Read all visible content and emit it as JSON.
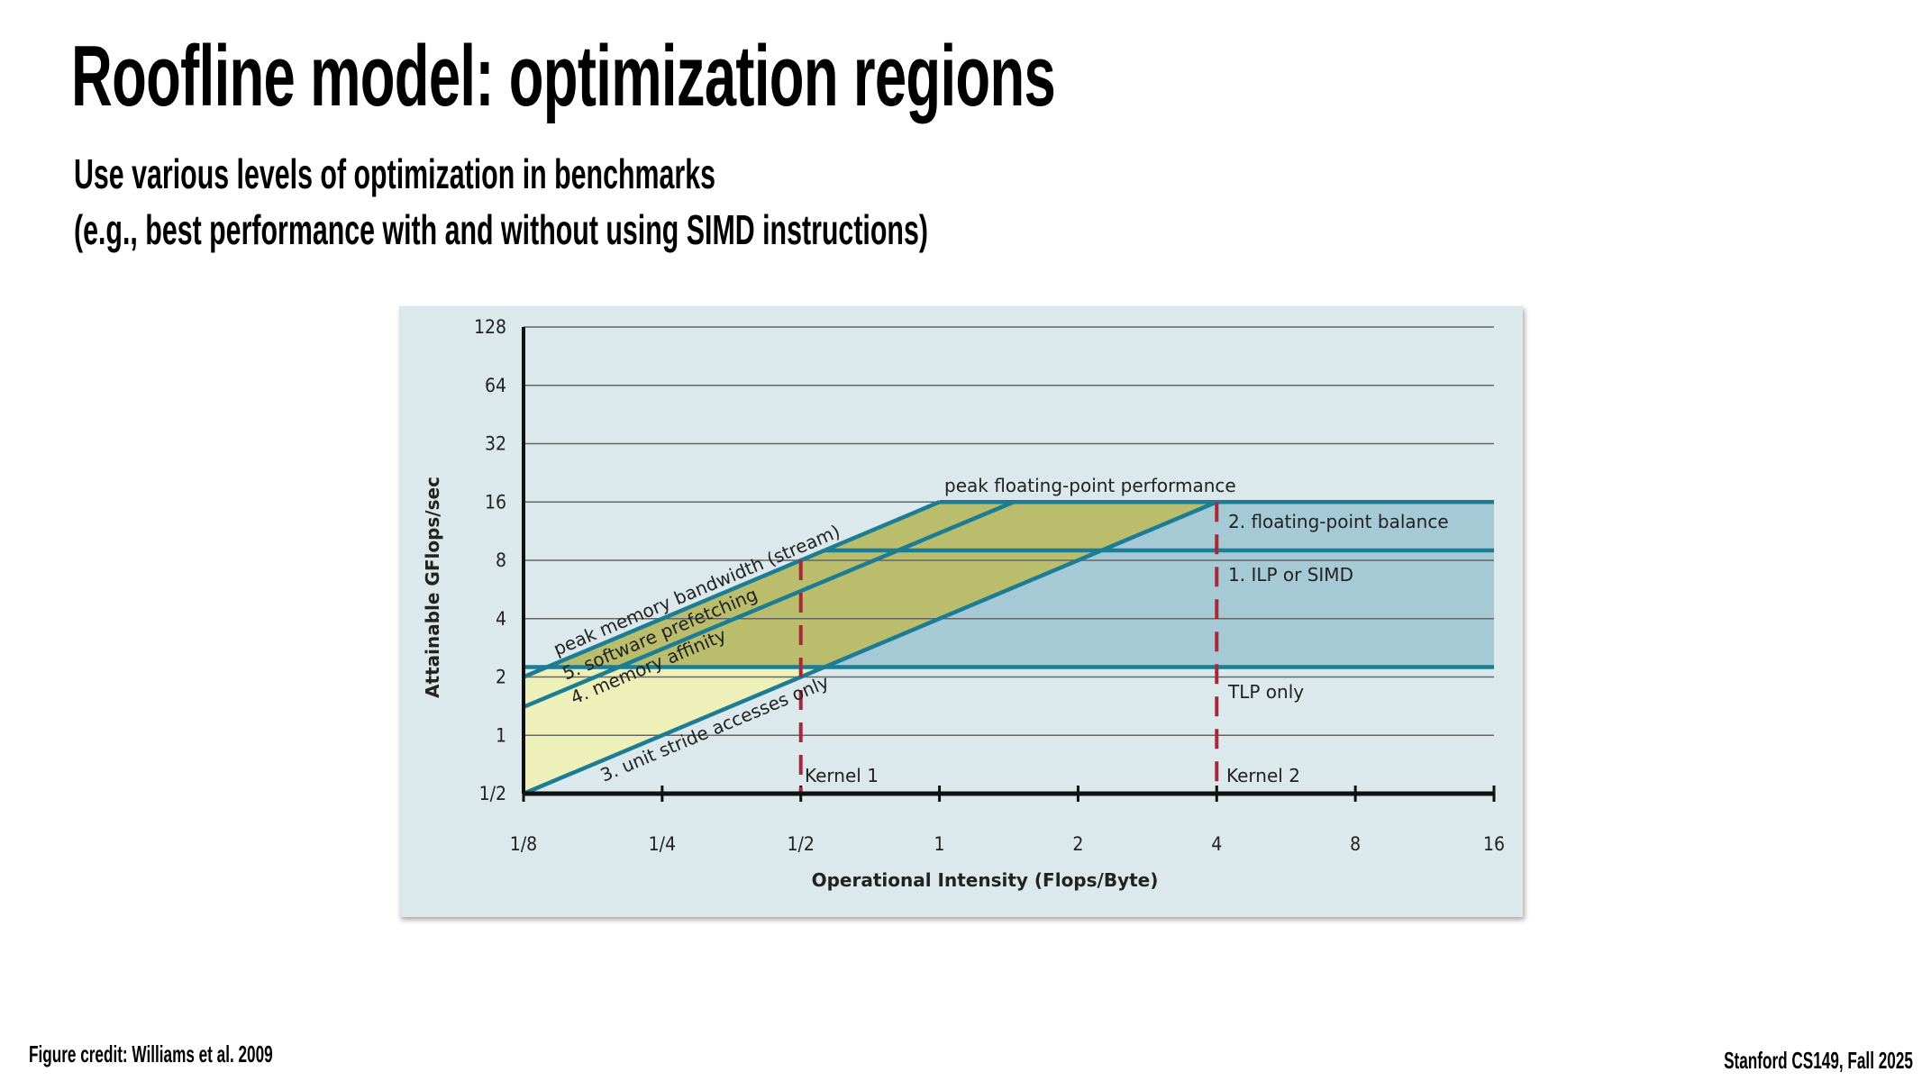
{
  "slide": {
    "title": "Roofline model: optimization regions",
    "subtitle_lines": [
      "Use various levels of optimization in benchmarks",
      "(e.g., best performance with and without using SIMD instructions)"
    ],
    "credit": "Figure credit: Williams et al. 2009",
    "course": "Stanford CS149, Fall 2025"
  },
  "chart_data": {
    "type": "line",
    "xlabel": "Operational Intensity (Flops/Byte)",
    "ylabel": "Attainable GFlops/sec",
    "x_scale": "log2",
    "y_scale": "log2",
    "xlim": [
      0.125,
      16
    ],
    "ylim": [
      0.5,
      128
    ],
    "x_ticks": [
      0.125,
      0.25,
      0.5,
      1,
      2,
      4,
      8,
      16
    ],
    "x_tick_labels": [
      "1/8",
      "1/4",
      "1/2",
      "1",
      "2",
      "4",
      "8",
      "16"
    ],
    "y_ticks": [
      0.5,
      1,
      2,
      4,
      8,
      16,
      32,
      64,
      128
    ],
    "y_tick_labels": [
      "1/2",
      "1",
      "2",
      "4",
      "8",
      "16",
      "32",
      "64",
      "128"
    ],
    "grid": "horizontal",
    "series": [
      {
        "name": "peak memory bandwidth (stream)",
        "x": [
          0.125,
          1
        ],
        "y": [
          2,
          16
        ]
      },
      {
        "name": "5. software prefetching",
        "x": [
          0.125,
          1.45
        ],
        "y": [
          1.4,
          16
        ]
      },
      {
        "name": "3. unit stride accesses only",
        "x": [
          0.125,
          4
        ],
        "y": [
          0.5,
          16
        ]
      },
      {
        "name": "peak floating-point performance",
        "x": [
          1,
          16
        ],
        "y": [
          16,
          16
        ]
      },
      {
        "name": "1. ILP or SIMD",
        "x": [
          0.5625,
          16
        ],
        "y": [
          9,
          9
        ]
      },
      {
        "name": "TLP only",
        "x": [
          0.125,
          16
        ],
        "y": [
          2.25,
          2.25
        ]
      }
    ],
    "annotations": {
      "memory_affinity": "4. memory affinity",
      "fp_balance": "2. floating-point balance",
      "kernel1": "Kernel 1",
      "kernel2": "Kernel 2"
    },
    "kernels": [
      {
        "label": "Kernel 1",
        "x": 0.5,
        "y_top": 8
      },
      {
        "label": "Kernel 2",
        "x": 4,
        "y_top": 16
      }
    ],
    "colors": {
      "background": "#dbe8ec",
      "line": "#1b7c94",
      "light_yellow": "#edf0b8",
      "olive": "#b9bd6c",
      "blue": "#a6c9d6",
      "kernel": "#a8283a"
    }
  }
}
